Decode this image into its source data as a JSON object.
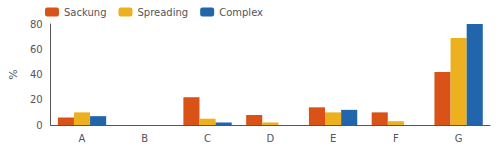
{
  "chart_data": {
    "type": "bar",
    "categories": [
      "A",
      "B",
      "C",
      "D",
      "E",
      "F",
      "G"
    ],
    "series": [
      {
        "name": "Sackung",
        "color": "#d95319",
        "values": [
          6,
          0,
          22,
          8,
          14,
          10,
          42
        ]
      },
      {
        "name": "Spreading",
        "color": "#edb120",
        "values": [
          10,
          0,
          5,
          2,
          10,
          3,
          69
        ]
      },
      {
        "name": "Complex",
        "color": "#2166ac",
        "values": [
          7,
          0,
          2,
          0,
          12,
          0,
          80
        ]
      }
    ],
    "ylabel": "%",
    "ylim": [
      0,
      80
    ],
    "yticks": [
      0,
      20,
      40,
      60,
      80
    ],
    "legend": "upper left",
    "grid": false
  }
}
